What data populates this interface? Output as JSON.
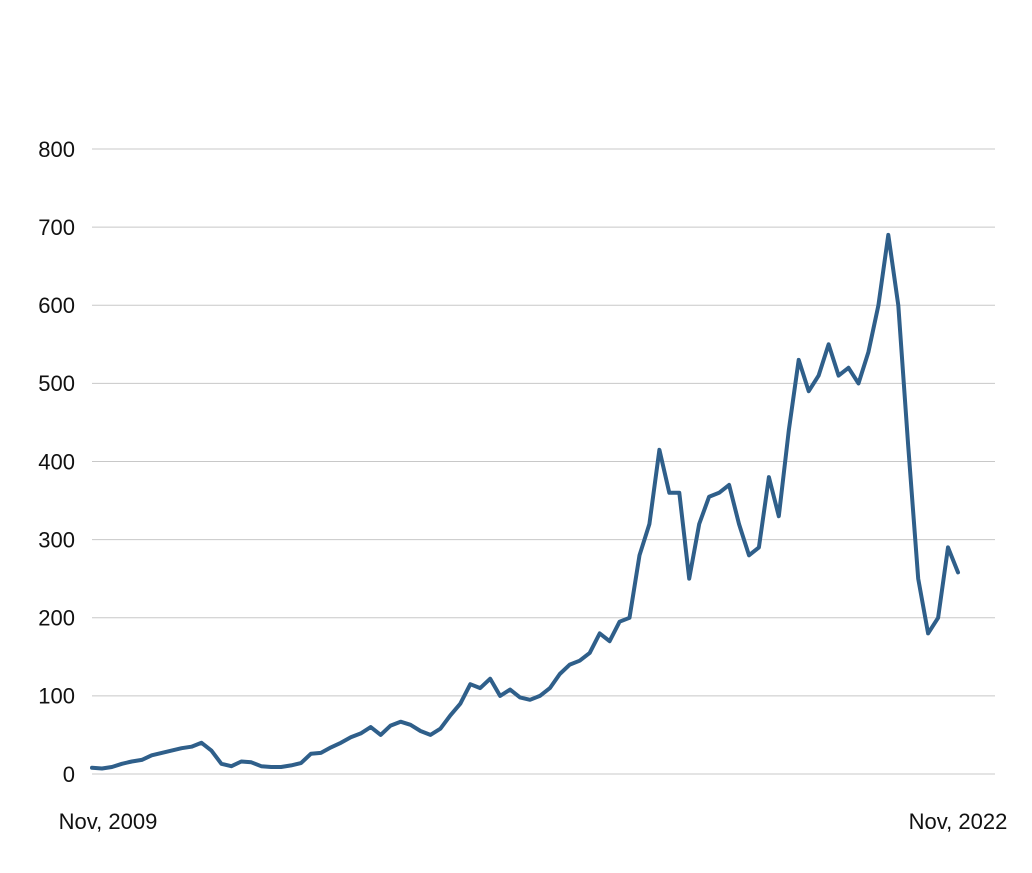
{
  "chart_data": {
    "type": "line",
    "categories": [
      "Nov, 2009",
      null,
      null,
      null,
      null,
      null,
      null,
      null,
      null,
      null,
      null,
      null,
      null,
      null,
      null,
      null,
      null,
      null,
      null,
      null,
      null,
      null,
      null,
      null,
      null,
      null,
      null,
      null,
      null,
      null,
      null,
      null,
      null,
      null,
      null,
      null,
      null,
      null,
      null,
      null,
      null,
      null,
      null,
      null,
      null,
      null,
      null,
      null,
      null,
      null,
      null,
      null,
      null,
      null,
      null,
      null,
      null,
      null,
      null,
      null,
      null,
      null,
      null,
      null,
      null,
      null,
      null,
      null,
      null,
      null,
      null,
      null,
      null,
      null,
      null,
      null,
      null,
      null,
      null,
      null,
      null,
      null,
      null,
      null,
      null,
      null,
      null,
      "Nov, 2022"
    ],
    "values": [
      8,
      7,
      9,
      13,
      16,
      18,
      24,
      27,
      30,
      33,
      35,
      40,
      30,
      13,
      10,
      16,
      15,
      10,
      9,
      9,
      11,
      14,
      26,
      27,
      34,
      40,
      47,
      52,
      60,
      50,
      62,
      67,
      63,
      55,
      50,
      58,
      75,
      90,
      115,
      110,
      122,
      100,
      108,
      98,
      95,
      100,
      110,
      128,
      140,
      145,
      155,
      180,
      170,
      195,
      200,
      280,
      320,
      415,
      360,
      360,
      250,
      320,
      355,
      360,
      370,
      320,
      280,
      290,
      380,
      330,
      440,
      530,
      490,
      510,
      550,
      510,
      520,
      500,
      540,
      600,
      690,
      600,
      420,
      250,
      180,
      200,
      290,
      258
    ],
    "color": "#2f5f8a",
    "ylim": [
      0,
      800
    ],
    "yticks": [
      0,
      100,
      200,
      300,
      400,
      500,
      600,
      700,
      800
    ],
    "grid": true
  }
}
